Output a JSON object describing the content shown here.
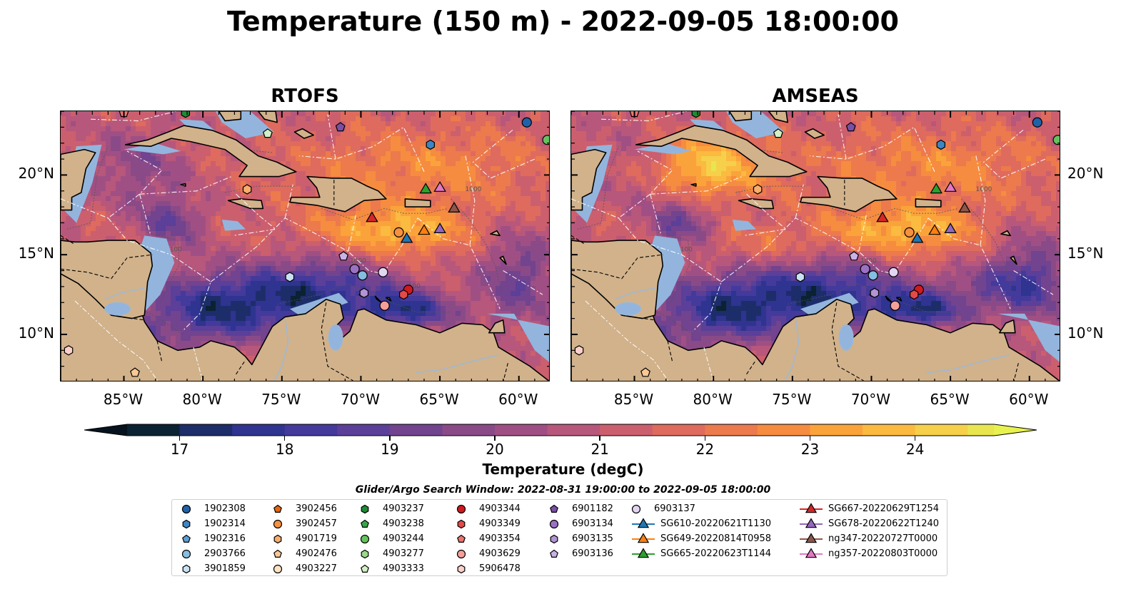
{
  "title": "Temperature (150 m) - 2022-09-05 18:00:00",
  "panels": [
    {
      "title": "RTOFS",
      "colormode": "rtofs"
    },
    {
      "title": "AMSEAS",
      "colormode": "amseas"
    }
  ],
  "map": {
    "lon_range": [
      -89,
      -58
    ],
    "lat_range": [
      7,
      24
    ],
    "lon_ticks": [
      {
        "lon": -85,
        "label": "85°W"
      },
      {
        "lon": -80,
        "label": "80°W"
      },
      {
        "lon": -75,
        "label": "75°W"
      },
      {
        "lon": -70,
        "label": "70°W"
      },
      {
        "lon": -65,
        "label": "65°W"
      },
      {
        "lon": -60,
        "label": "60°W"
      }
    ],
    "lat_ticks": [
      {
        "lat": 20,
        "label": "20°N"
      },
      {
        "lat": 15,
        "label": "15°N"
      },
      {
        "lat": 10,
        "label": "10°N"
      }
    ],
    "contour_labels": [
      "100",
      "1000"
    ]
  },
  "colorbar": {
    "label": "Temperature (degC)",
    "min": 16.5,
    "max": 24.75,
    "step": 0.5,
    "ticks": [
      "17",
      "18",
      "19",
      "20",
      "21",
      "22",
      "23",
      "24"
    ],
    "colors": [
      "#0b2233",
      "#1d2d6a",
      "#2e3490",
      "#433a9c",
      "#5b3f98",
      "#72438f",
      "#8a4a88",
      "#a04f84",
      "#b7577b",
      "#cc5f6e",
      "#de6b5e",
      "#ec7a4d",
      "#f68c3f",
      "#fba33b",
      "#fbba40",
      "#f6d04a",
      "#e8e54f"
    ],
    "under_color": "#06131f",
    "over_color": "#e8f24f"
  },
  "legend": {
    "search_window": "Glider/Argo Search Window: 2022-08-31 19:00:00 to 2022-09-05 18:00:00",
    "columns": [
      [
        {
          "id": "1902308",
          "marker": "circle",
          "color": "#1f62a8"
        },
        {
          "id": "1902314",
          "marker": "hexagon",
          "color": "#3e86c3"
        },
        {
          "id": "1902316",
          "marker": "pentagon",
          "color": "#5c9fd2"
        },
        {
          "id": "2903766",
          "marker": "circle",
          "color": "#86bde0"
        },
        {
          "id": "3901859",
          "marker": "hexagon",
          "color": "#c9e2f2"
        }
      ],
      [
        {
          "id": "3902456",
          "marker": "pentagon",
          "color": "#e8650e"
        },
        {
          "id": "3902457",
          "marker": "circle",
          "color": "#f5913f"
        },
        {
          "id": "4901719",
          "marker": "hexagon",
          "color": "#f8ad6c"
        },
        {
          "id": "4902476",
          "marker": "pentagon",
          "color": "#fbc894"
        },
        {
          "id": "4903227",
          "marker": "circle",
          "color": "#fde3c4"
        }
      ],
      [
        {
          "id": "4903237",
          "marker": "hexagon",
          "color": "#1e8a34"
        },
        {
          "id": "4903238",
          "marker": "pentagon",
          "color": "#3aa64a"
        },
        {
          "id": "4903244",
          "marker": "circle",
          "color": "#66c25f"
        },
        {
          "id": "4903277",
          "marker": "hexagon",
          "color": "#9bd98b"
        },
        {
          "id": "4903333",
          "marker": "pentagon",
          "color": "#d2f0c4"
        }
      ],
      [
        {
          "id": "4903344",
          "marker": "circle",
          "color": "#d01a1e"
        },
        {
          "id": "4903349",
          "marker": "hexagon",
          "color": "#e34a48"
        },
        {
          "id": "4903354",
          "marker": "pentagon",
          "color": "#ed7470"
        },
        {
          "id": "4903629",
          "marker": "circle",
          "color": "#f59f98"
        },
        {
          "id": "5906478",
          "marker": "hexagon",
          "color": "#fbd0c9"
        }
      ],
      [
        {
          "id": "6901182",
          "marker": "pentagon",
          "color": "#7b4fa6"
        },
        {
          "id": "6903134",
          "marker": "circle",
          "color": "#9b72c3"
        },
        {
          "id": "6903135",
          "marker": "hexagon",
          "color": "#b394d5"
        },
        {
          "id": "6903136",
          "marker": "pentagon",
          "color": "#c9b2e6"
        }
      ],
      [
        {
          "id": "6903137",
          "marker": "circle",
          "color": "#e2d5f2"
        },
        {
          "id": "SG610-20220621T1130",
          "marker": "triangle",
          "color": "#1f77b4"
        },
        {
          "id": "SG649-20220814T0958",
          "marker": "triangle",
          "color": "#ff7f0e"
        },
        {
          "id": "SG665-20220623T1144",
          "marker": "triangle",
          "color": "#2ca02c"
        }
      ],
      [
        {
          "id": "SG667-20220629T1254",
          "marker": "triangle",
          "color": "#d62728"
        },
        {
          "id": "SG678-20220622T1240",
          "marker": "triangle",
          "color": "#9467bd"
        },
        {
          "id": "ng347-20220727T0000",
          "marker": "triangle",
          "color": "#8c564b"
        },
        {
          "id": "ng357-20220803T0000",
          "marker": "triangle",
          "color": "#e377c2"
        }
      ]
    ]
  },
  "observations": [
    {
      "id": "1902308",
      "lon": -59.5,
      "lat": 23.3
    },
    {
      "id": "4903244",
      "lon": -58.2,
      "lat": 22.2
    },
    {
      "id": "1902314",
      "lon": -65.6,
      "lat": 21.9
    },
    {
      "id": "6901182",
      "lon": -71.3,
      "lat": 23.0
    },
    {
      "id": "4903333",
      "lon": -75.9,
      "lat": 22.6
    },
    {
      "id": "4901719",
      "lon": -77.2,
      "lat": 19.1
    },
    {
      "id": "6903136",
      "lon": -71.1,
      "lat": 14.9
    },
    {
      "id": "6903134",
      "lon": -70.4,
      "lat": 14.1
    },
    {
      "id": "2903766",
      "lon": -69.9,
      "lat": 13.7
    },
    {
      "id": "6903137",
      "lon": -68.6,
      "lat": 13.9
    },
    {
      "id": "6903135",
      "lon": -69.8,
      "lat": 12.6
    },
    {
      "id": "4903629",
      "lon": -68.5,
      "lat": 11.8
    },
    {
      "id": "4903344",
      "lon": -67.0,
      "lat": 12.8
    },
    {
      "id": "4903349",
      "lon": -67.3,
      "lat": 12.5
    },
    {
      "id": "3901859",
      "lon": -74.5,
      "lat": 13.6
    },
    {
      "id": "3902457",
      "lon": -67.6,
      "lat": 16.4
    },
    {
      "id": "4902476",
      "lon": -84.3,
      "lat": 7.6
    },
    {
      "id": "5906478",
      "lon": -88.5,
      "lat": 9.0
    },
    {
      "id": "4903237",
      "lon": -81.1,
      "lat": 23.9
    },
    {
      "id": "4903354",
      "lon": -85.0,
      "lat": 23.9
    },
    {
      "id": "SG610-20220621T1130",
      "lon": -67.1,
      "lat": 16.0
    },
    {
      "id": "SG649-20220814T0958",
      "lon": -66.0,
      "lat": 16.5
    },
    {
      "id": "SG678-20220622T1240",
      "lon": -65.0,
      "lat": 16.6
    },
    {
      "id": "SG665-20220623T1144",
      "lon": -65.9,
      "lat": 19.1
    },
    {
      "id": "ng357-20220803T0000",
      "lon": -65.0,
      "lat": 19.2
    },
    {
      "id": "ng347-20220727T0000",
      "lon": -64.1,
      "lat": 17.9
    },
    {
      "id": "SG667-20220629T1254",
      "lon": -69.3,
      "lat": 17.3
    }
  ]
}
